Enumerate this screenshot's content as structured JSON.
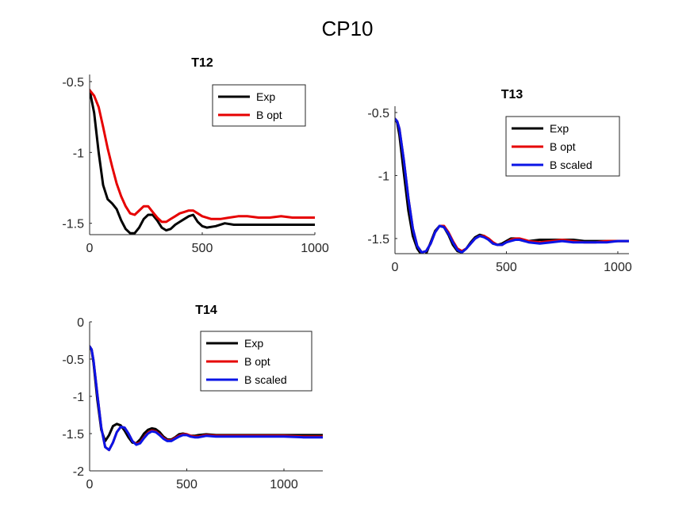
{
  "figure_title": "CP10",
  "colors": {
    "Exp": "#000000",
    "B opt": "#e60000",
    "B scaled": "#0a14e6"
  },
  "chart_data": [
    {
      "id": "t12",
      "type": "line",
      "title": "T12",
      "xlim": [
        0,
        1000
      ],
      "ylim": [
        -1.58,
        -0.45
      ],
      "xticks": [
        0,
        500,
        1000
      ],
      "yticks": [
        -1.5,
        -1,
        -0.5
      ],
      "xlabel": "",
      "ylabel": "",
      "legend": "top-right",
      "series": [
        {
          "name": "Exp",
          "x": [
            0,
            20,
            40,
            60,
            80,
            100,
            120,
            140,
            160,
            180,
            200,
            220,
            240,
            260,
            280,
            300,
            320,
            340,
            360,
            380,
            400,
            420,
            440,
            460,
            480,
            500,
            520,
            560,
            600,
            640,
            700,
            750,
            800,
            850,
            900,
            950,
            1000
          ],
          "y": [
            -0.56,
            -0.72,
            -1.0,
            -1.23,
            -1.33,
            -1.36,
            -1.4,
            -1.48,
            -1.54,
            -1.57,
            -1.57,
            -1.53,
            -1.47,
            -1.44,
            -1.44,
            -1.48,
            -1.53,
            -1.55,
            -1.54,
            -1.51,
            -1.49,
            -1.47,
            -1.45,
            -1.44,
            -1.49,
            -1.52,
            -1.53,
            -1.52,
            -1.5,
            -1.51,
            -1.51,
            -1.51,
            -1.51,
            -1.51,
            -1.51,
            -1.51,
            -1.51
          ]
        },
        {
          "name": "B opt",
          "x": [
            0,
            20,
            40,
            60,
            80,
            100,
            120,
            140,
            160,
            180,
            200,
            220,
            240,
            260,
            280,
            300,
            320,
            340,
            360,
            380,
            400,
            420,
            440,
            460,
            480,
            500,
            540,
            580,
            620,
            660,
            700,
            750,
            800,
            850,
            900,
            950,
            1000
          ],
          "y": [
            -0.56,
            -0.6,
            -0.68,
            -0.82,
            -0.97,
            -1.1,
            -1.22,
            -1.31,
            -1.38,
            -1.43,
            -1.44,
            -1.41,
            -1.38,
            -1.38,
            -1.42,
            -1.46,
            -1.49,
            -1.49,
            -1.47,
            -1.45,
            -1.43,
            -1.42,
            -1.41,
            -1.41,
            -1.43,
            -1.45,
            -1.47,
            -1.47,
            -1.46,
            -1.45,
            -1.45,
            -1.46,
            -1.46,
            -1.45,
            -1.46,
            -1.46,
            -1.46
          ]
        }
      ]
    },
    {
      "id": "t13",
      "type": "line",
      "title": "T13",
      "xlim": [
        0,
        1050
      ],
      "ylim": [
        -1.62,
        -0.45
      ],
      "xticks": [
        0,
        500,
        1000
      ],
      "yticks": [
        -1.5,
        -1,
        -0.5
      ],
      "xlabel": "",
      "ylabel": "",
      "legend": "top-right",
      "series": [
        {
          "name": "Exp",
          "x": [
            0,
            10,
            20,
            40,
            60,
            80,
            100,
            120,
            130,
            140,
            160,
            180,
            200,
            220,
            240,
            260,
            280,
            300,
            320,
            340,
            360,
            380,
            400,
            420,
            440,
            460,
            480,
            500,
            520,
            540,
            560,
            580,
            600,
            650,
            700,
            750,
            800,
            850,
            900,
            950,
            1000,
            1050
          ],
          "y": [
            -0.55,
            -0.58,
            -0.68,
            -0.98,
            -1.28,
            -1.48,
            -1.58,
            -1.63,
            -1.64,
            -1.62,
            -1.53,
            -1.44,
            -1.4,
            -1.41,
            -1.47,
            -1.55,
            -1.6,
            -1.61,
            -1.58,
            -1.53,
            -1.49,
            -1.47,
            -1.48,
            -1.51,
            -1.54,
            -1.55,
            -1.54,
            -1.52,
            -1.5,
            -1.5,
            -1.51,
            -1.52,
            -1.52,
            -1.51,
            -1.51,
            -1.51,
            -1.51,
            -1.52,
            -1.52,
            -1.52,
            -1.52,
            -1.52
          ]
        },
        {
          "name": "B opt",
          "x": [
            0,
            10,
            20,
            40,
            60,
            80,
            100,
            120,
            140,
            160,
            180,
            200,
            220,
            240,
            260,
            280,
            300,
            320,
            340,
            360,
            380,
            400,
            420,
            440,
            460,
            480,
            500,
            520,
            540,
            560,
            580,
            600,
            650,
            700,
            750,
            800,
            850,
            900,
            950,
            1000,
            1050
          ],
          "y": [
            -0.55,
            -0.57,
            -0.63,
            -0.88,
            -1.18,
            -1.42,
            -1.56,
            -1.61,
            -1.6,
            -1.54,
            -1.45,
            -1.4,
            -1.4,
            -1.45,
            -1.52,
            -1.58,
            -1.6,
            -1.58,
            -1.54,
            -1.5,
            -1.48,
            -1.48,
            -1.5,
            -1.53,
            -1.55,
            -1.55,
            -1.53,
            -1.51,
            -1.5,
            -1.5,
            -1.51,
            -1.52,
            -1.53,
            -1.52,
            -1.51,
            -1.52,
            -1.53,
            -1.53,
            -1.52,
            -1.52,
            -1.52
          ]
        },
        {
          "name": "B scaled",
          "x": [
            0,
            10,
            20,
            40,
            60,
            80,
            100,
            120,
            140,
            160,
            180,
            200,
            220,
            240,
            260,
            280,
            300,
            320,
            340,
            360,
            380,
            400,
            420,
            440,
            460,
            480,
            500,
            520,
            540,
            560,
            580,
            600,
            650,
            700,
            750,
            800,
            850,
            900,
            950,
            1000,
            1050
          ],
          "y": [
            -0.55,
            -0.57,
            -0.63,
            -0.88,
            -1.18,
            -1.42,
            -1.56,
            -1.61,
            -1.6,
            -1.54,
            -1.45,
            -1.4,
            -1.41,
            -1.46,
            -1.53,
            -1.59,
            -1.61,
            -1.58,
            -1.54,
            -1.5,
            -1.48,
            -1.49,
            -1.51,
            -1.54,
            -1.55,
            -1.55,
            -1.53,
            -1.52,
            -1.51,
            -1.51,
            -1.52,
            -1.53,
            -1.54,
            -1.53,
            -1.52,
            -1.53,
            -1.53,
            -1.53,
            -1.53,
            -1.52,
            -1.52
          ]
        }
      ]
    },
    {
      "id": "t14",
      "type": "line",
      "title": "T14",
      "xlim": [
        0,
        1200
      ],
      "ylim": [
        -2,
        0
      ],
      "xticks": [
        0,
        500,
        1000
      ],
      "yticks": [
        -2,
        -1.5,
        -1,
        -0.5,
        0
      ],
      "xlabel": "",
      "ylabel": "",
      "legend": "top-right",
      "series": [
        {
          "name": "Exp",
          "x": [
            0,
            10,
            20,
            40,
            60,
            80,
            100,
            120,
            140,
            160,
            180,
            200,
            220,
            240,
            260,
            280,
            300,
            320,
            340,
            360,
            380,
            400,
            420,
            440,
            460,
            480,
            500,
            520,
            540,
            560,
            600,
            650,
            700,
            800,
            900,
            1000,
            1100,
            1200
          ],
          "y": [
            -0.33,
            -0.38,
            -0.55,
            -1.05,
            -1.45,
            -1.6,
            -1.52,
            -1.4,
            -1.37,
            -1.39,
            -1.46,
            -1.55,
            -1.62,
            -1.63,
            -1.58,
            -1.5,
            -1.45,
            -1.43,
            -1.44,
            -1.48,
            -1.54,
            -1.58,
            -1.58,
            -1.55,
            -1.51,
            -1.5,
            -1.51,
            -1.53,
            -1.53,
            -1.52,
            -1.51,
            -1.52,
            -1.52,
            -1.52,
            -1.52,
            -1.52,
            -1.52,
            -1.52
          ]
        },
        {
          "name": "B opt",
          "x": [
            0,
            10,
            20,
            40,
            60,
            80,
            100,
            120,
            140,
            160,
            180,
            200,
            220,
            240,
            260,
            280,
            300,
            320,
            340,
            360,
            380,
            400,
            420,
            440,
            460,
            480,
            500,
            520,
            540,
            560,
            600,
            650,
            700,
            800,
            900,
            1000,
            1100,
            1200
          ],
          "y": [
            -0.33,
            -0.37,
            -0.52,
            -0.98,
            -1.42,
            -1.68,
            -1.72,
            -1.62,
            -1.48,
            -1.41,
            -1.42,
            -1.5,
            -1.6,
            -1.64,
            -1.62,
            -1.55,
            -1.49,
            -1.46,
            -1.47,
            -1.51,
            -1.56,
            -1.59,
            -1.59,
            -1.56,
            -1.53,
            -1.51,
            -1.51,
            -1.53,
            -1.54,
            -1.54,
            -1.52,
            -1.53,
            -1.53,
            -1.53,
            -1.53,
            -1.53,
            -1.54,
            -1.54
          ]
        },
        {
          "name": "B scaled",
          "x": [
            0,
            10,
            20,
            40,
            60,
            80,
            100,
            120,
            140,
            160,
            180,
            200,
            220,
            240,
            260,
            280,
            300,
            320,
            340,
            360,
            380,
            400,
            420,
            440,
            460,
            480,
            500,
            520,
            540,
            560,
            600,
            650,
            700,
            800,
            900,
            1000,
            1100,
            1200
          ],
          "y": [
            -0.33,
            -0.37,
            -0.52,
            -0.98,
            -1.42,
            -1.68,
            -1.72,
            -1.62,
            -1.48,
            -1.41,
            -1.42,
            -1.5,
            -1.6,
            -1.65,
            -1.63,
            -1.56,
            -1.5,
            -1.47,
            -1.48,
            -1.52,
            -1.57,
            -1.6,
            -1.6,
            -1.57,
            -1.54,
            -1.52,
            -1.52,
            -1.54,
            -1.55,
            -1.55,
            -1.53,
            -1.54,
            -1.54,
            -1.54,
            -1.54,
            -1.54,
            -1.55,
            -1.55
          ]
        }
      ]
    }
  ]
}
